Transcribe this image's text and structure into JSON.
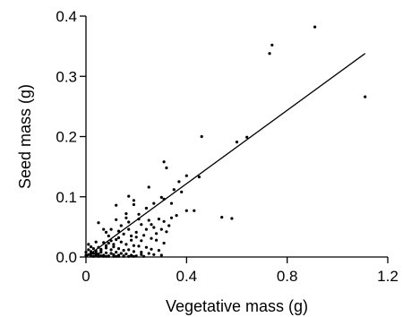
{
  "chart_data": {
    "type": "scatter",
    "title": "",
    "xlabel": "Vegetative mass (g)",
    "ylabel": "Seed mass (g)",
    "xlim": [
      0,
      1.2
    ],
    "ylim": [
      0,
      0.4
    ],
    "x_ticks": [
      "0",
      "0.4",
      "0.8",
      "1.2"
    ],
    "y_ticks": [
      "0.0",
      "0.1",
      "0.2",
      "0.3",
      "0.4"
    ],
    "x_tick_values": [
      0,
      0.4,
      0.8,
      1.2
    ],
    "y_tick_values": [
      0,
      0.1,
      0.2,
      0.3,
      0.4
    ],
    "grid": false,
    "legend": "none",
    "fit_line": {
      "x": [
        0.0,
        1.11
      ],
      "y": [
        -0.005,
        0.338
      ]
    },
    "series": [
      {
        "points": [
          [
            0.91,
            0.382
          ],
          [
            0.74,
            0.352
          ],
          [
            0.73,
            0.338
          ],
          [
            1.11,
            0.266
          ],
          [
            0.46,
            0.2
          ],
          [
            0.64,
            0.199
          ],
          [
            0.6,
            0.191
          ],
          [
            0.31,
            0.158
          ],
          [
            0.32,
            0.148
          ],
          [
            0.4,
            0.135
          ],
          [
            0.45,
            0.133
          ],
          [
            0.37,
            0.125
          ],
          [
            0.35,
            0.112
          ],
          [
            0.38,
            0.108
          ],
          [
            0.25,
            0.116
          ],
          [
            0.3,
            0.099
          ],
          [
            0.31,
            0.096
          ],
          [
            0.17,
            0.101
          ],
          [
            0.19,
            0.094
          ],
          [
            0.27,
            0.089
          ],
          [
            0.34,
            0.089
          ],
          [
            0.24,
            0.081
          ],
          [
            0.12,
            0.086
          ],
          [
            0.16,
            0.072
          ],
          [
            0.21,
            0.071
          ],
          [
            0.25,
            0.061
          ],
          [
            0.29,
            0.063
          ],
          [
            0.31,
            0.059
          ],
          [
            0.34,
            0.065
          ],
          [
            0.4,
            0.077
          ],
          [
            0.43,
            0.077
          ],
          [
            0.36,
            0.069
          ],
          [
            0.54,
            0.066
          ],
          [
            0.58,
            0.064
          ],
          [
            0.05,
            0.057
          ],
          [
            0.17,
            0.058
          ],
          [
            0.22,
            0.054
          ],
          [
            0.27,
            0.049
          ],
          [
            0.3,
            0.046
          ],
          [
            0.32,
            0.042
          ],
          [
            0.1,
            0.046
          ],
          [
            0.07,
            0.046
          ],
          [
            0.08,
            0.041
          ],
          [
            0.13,
            0.043
          ],
          [
            0.15,
            0.038
          ],
          [
            0.18,
            0.035
          ],
          [
            0.2,
            0.033
          ],
          [
            0.23,
            0.036
          ],
          [
            0.26,
            0.031
          ],
          [
            0.28,
            0.028
          ],
          [
            0.31,
            0.023
          ],
          [
            0.12,
            0.029
          ],
          [
            0.1,
            0.027
          ],
          [
            0.04,
            0.025
          ],
          [
            0.07,
            0.024
          ],
          [
            0.09,
            0.023
          ],
          [
            0.14,
            0.025
          ],
          [
            0.16,
            0.021
          ],
          [
            0.19,
            0.019
          ],
          [
            0.21,
            0.018
          ],
          [
            0.24,
            0.016
          ],
          [
            0.26,
            0.013
          ],
          [
            0.29,
            0.011
          ],
          [
            0.01,
            0.021
          ],
          [
            0.02,
            0.017
          ],
          [
            0.03,
            0.014
          ],
          [
            0.05,
            0.016
          ],
          [
            0.06,
            0.013
          ],
          [
            0.08,
            0.015
          ],
          [
            0.1,
            0.012
          ],
          [
            0.11,
            0.017
          ],
          [
            0.13,
            0.014
          ],
          [
            0.15,
            0.011
          ],
          [
            0.17,
            0.012
          ],
          [
            0.19,
            0.009
          ],
          [
            0.22,
            0.008
          ],
          [
            0.25,
            0.006
          ],
          [
            0.27,
            0.004
          ],
          [
            0.3,
            0.003
          ],
          [
            0.01,
            0.012
          ],
          [
            0.02,
            0.009
          ],
          [
            0.03,
            0.006
          ],
          [
            0.04,
            0.01
          ],
          [
            0.05,
            0.005
          ],
          [
            0.06,
            0.008
          ],
          [
            0.07,
            0.003
          ],
          [
            0.08,
            0.007
          ],
          [
            0.09,
            0.002
          ],
          [
            0.1,
            0.006
          ],
          [
            0.11,
            0.004
          ],
          [
            0.12,
            0.008
          ],
          [
            0.13,
            0.003
          ],
          [
            0.14,
            0.006
          ],
          [
            0.15,
            0.002
          ],
          [
            0.16,
            0.005
          ],
          [
            0.18,
            0.003
          ],
          [
            0.2,
            0.002
          ],
          [
            0.22,
            0.004
          ],
          [
            0.01,
            0.004
          ],
          [
            0.02,
            0.002
          ],
          [
            0.03,
            0.001
          ],
          [
            0.04,
            0.003
          ],
          [
            0.05,
            0.001
          ],
          [
            0.06,
            0.002
          ],
          [
            0.07,
            0.001
          ],
          [
            0.08,
            0.001
          ],
          [
            0.09,
            0.001
          ],
          [
            0.11,
            0.001
          ],
          [
            0.12,
            0.001
          ],
          [
            0.13,
            0.001
          ],
          [
            0.15,
            0.001
          ],
          [
            0.17,
            0.001
          ],
          [
            0.19,
            0.001
          ],
          [
            0.23,
            0.001
          ],
          [
            0.0,
            0.008
          ],
          [
            0.0,
            0.003
          ],
          [
            0.02,
            0.006
          ],
          [
            0.04,
            0.007
          ],
          [
            0.06,
            0.011
          ],
          [
            0.08,
            0.019
          ],
          [
            0.11,
            0.021
          ],
          [
            0.13,
            0.032
          ],
          [
            0.18,
            0.028
          ],
          [
            0.2,
            0.041
          ],
          [
            0.24,
            0.046
          ],
          [
            0.28,
            0.039
          ],
          [
            0.22,
            0.027
          ],
          [
            0.17,
            0.046
          ],
          [
            0.14,
            0.052
          ],
          [
            0.09,
            0.035
          ],
          [
            0.26,
            0.054
          ],
          [
            0.33,
            0.052
          ],
          [
            0.21,
            0.063
          ],
          [
            0.19,
            0.087
          ],
          [
            0.12,
            0.062
          ],
          [
            0.16,
            0.065
          ]
        ]
      }
    ]
  }
}
